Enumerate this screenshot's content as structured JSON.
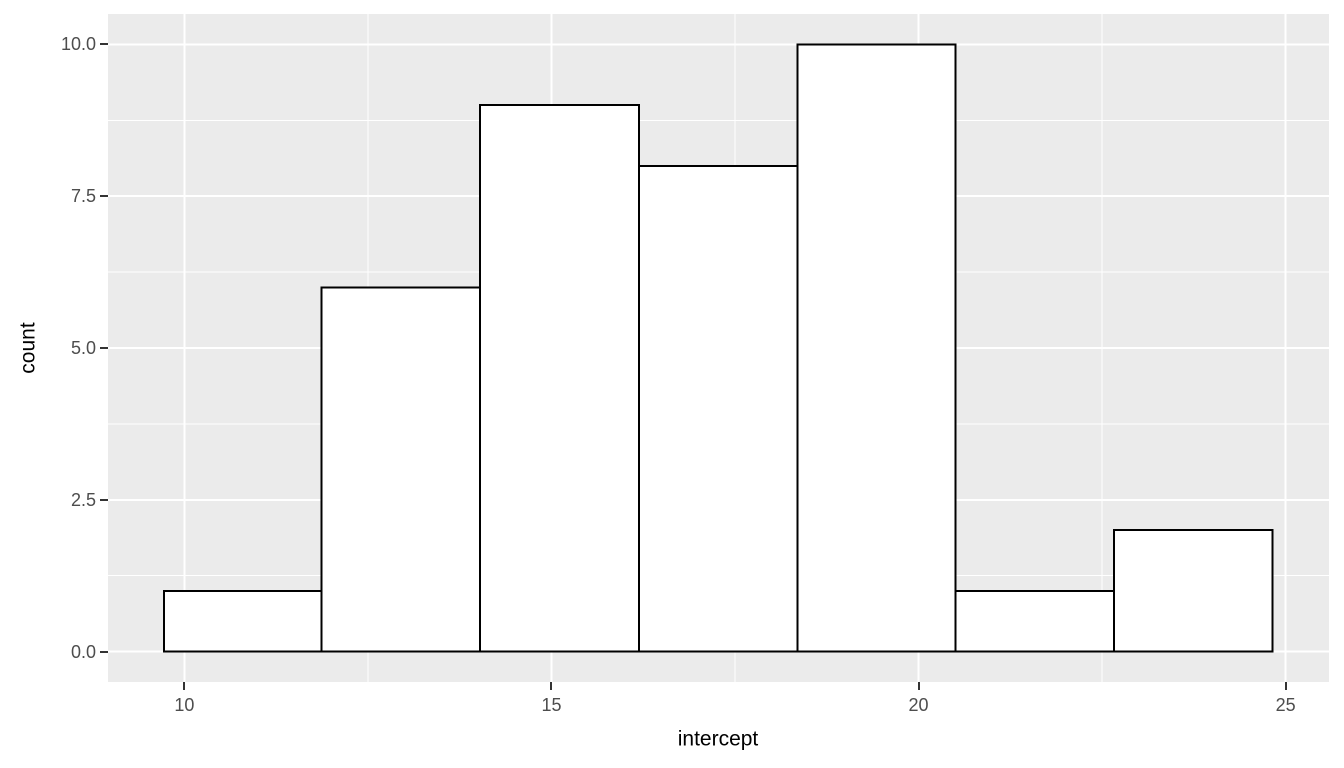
{
  "chart_data": {
    "type": "bar",
    "variant": "histogram",
    "title": "",
    "xlabel": "intercept",
    "ylabel": "count",
    "bin_edges": [
      9.72,
      11.87,
      14.03,
      16.19,
      18.35,
      20.5,
      22.66,
      24.82
    ],
    "counts": [
      1,
      6,
      9,
      8,
      10,
      1,
      2
    ],
    "xlim": [
      8.96,
      25.59
    ],
    "ylim": [
      -0.5,
      10.5
    ],
    "x_ticks": [
      10,
      15,
      20,
      25
    ],
    "x_tick_labels": [
      "10",
      "15",
      "20",
      "25"
    ],
    "y_ticks": [
      0,
      2.5,
      5,
      7.5,
      10
    ],
    "y_tick_labels": [
      "0.0",
      "2.5",
      "5.0",
      "7.5",
      "10.0"
    ],
    "x_minor_ticks": [
      12.5,
      17.5,
      22.5
    ],
    "y_minor_ticks": [
      1.25,
      3.75,
      6.25,
      8.75
    ],
    "grid": true,
    "legend": false,
    "style": {
      "panel_bg": "#EBEBEB",
      "grid_color": "#FFFFFF",
      "bar_fill": "#FFFFFF",
      "bar_stroke": "#000000",
      "tick_label_color": "#4D4D4D",
      "axis_title_color": "#000000",
      "tick_mark_color": "#333333"
    }
  }
}
